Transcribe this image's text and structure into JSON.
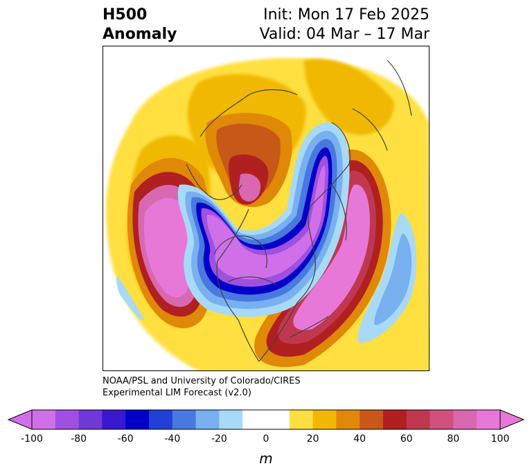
{
  "header": {
    "title_line1": "H500",
    "title_line2": "Anomaly",
    "init_text": "Init: Mon 17 Feb 2025",
    "valid_text": "Valid: 04 Mar – 17 Mar"
  },
  "credit": {
    "line1": "NOAA/PSL and University of Colorado/CIRES",
    "line2": "Experimental LIM Forecast (v2.0)"
  },
  "colorbar": {
    "units": "m",
    "ticks": [
      "-100",
      "-80",
      "-60",
      "-40",
      "-20",
      "0",
      "20",
      "40",
      "60",
      "80",
      "100"
    ],
    "colors": [
      "#d070e8",
      "#a050e0",
      "#7038d8",
      "#3818d0",
      "#0000c8",
      "#2040d8",
      "#4878e0",
      "#78b0f0",
      "#a8daf8",
      "#ffffff",
      "#ffffff",
      "#ffe040",
      "#f0b800",
      "#e08808",
      "#c85818",
      "#b02020",
      "#c03850",
      "#d05080",
      "#d868b0",
      "#e878d8"
    ]
  },
  "map": {
    "colors": {
      "strong_neg": "#d070e8",
      "neg_purple": "#a050e0",
      "neg_blue": "#0000c8",
      "neg_mid": "#4878e0",
      "neg_light": "#78b0f0",
      "neg_pale": "#a8daf8",
      "pos_yellow": "#ffe040",
      "pos_gold": "#f0b800",
      "pos_orange": "#e08808",
      "pos_rust": "#c85818",
      "pos_red": "#b02020",
      "pos_rose": "#c03850",
      "pos_pink": "#d868b0",
      "pos_magenta": "#e878d8",
      "coast": "#404040"
    }
  }
}
